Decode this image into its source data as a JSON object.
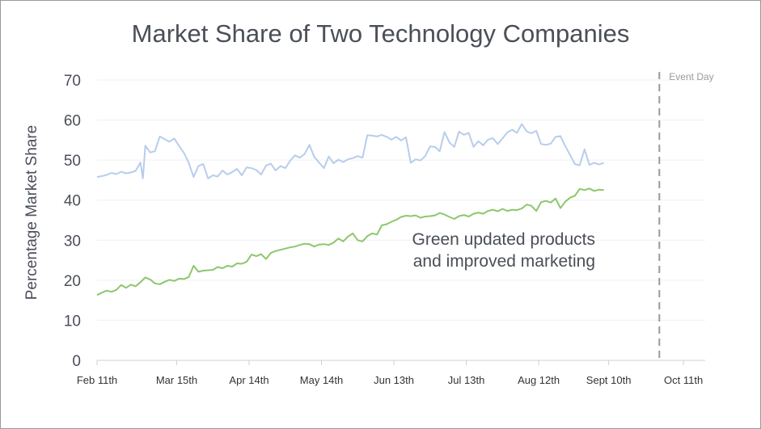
{
  "chart_data": {
    "type": "line",
    "title": "Market Share of Two Technology Companies",
    "xlabel": "",
    "ylabel": "Percentage Market Share",
    "ylim": [
      0,
      70
    ],
    "yticks": [
      0,
      10,
      20,
      30,
      40,
      50,
      60,
      70
    ],
    "xticks": [
      "Feb 11th",
      "Mar 15th",
      "Apr 14th",
      "May 14th",
      "Jun 13th",
      "Jul 13th",
      "Aug 12th",
      "Sept 10th",
      "Oct 11th"
    ],
    "grid": true,
    "event_marker": {
      "label": "Event Day",
      "x": "2024-10-01"
    },
    "annotation": [
      "Green updated products",
      "and improved marketing"
    ],
    "series": [
      {
        "color": "#b7cdec",
        "points": [
          [
            "2024-02-11",
            45.8
          ],
          [
            "2024-02-13",
            46.0
          ],
          [
            "2024-02-15",
            46.3
          ],
          [
            "2024-02-17",
            46.8
          ],
          [
            "2024-02-19",
            46.5
          ],
          [
            "2024-02-21",
            47.1
          ],
          [
            "2024-02-23",
            46.7
          ],
          [
            "2024-02-25",
            46.9
          ],
          [
            "2024-02-27",
            47.3
          ],
          [
            "2024-02-29",
            49.4
          ],
          [
            "2024-03-01",
            45.4
          ],
          [
            "2024-03-02",
            53.6
          ],
          [
            "2024-03-04",
            51.9
          ],
          [
            "2024-03-06",
            52.2
          ],
          [
            "2024-03-08",
            55.9
          ],
          [
            "2024-03-10",
            55.2
          ],
          [
            "2024-03-12",
            54.6
          ],
          [
            "2024-03-14",
            55.4
          ],
          [
            "2024-03-16",
            53.5
          ],
          [
            "2024-03-18",
            51.8
          ],
          [
            "2024-03-20",
            49.3
          ],
          [
            "2024-03-22",
            45.8
          ],
          [
            "2024-03-24",
            48.5
          ],
          [
            "2024-03-26",
            49.0
          ],
          [
            "2024-03-28",
            45.4
          ],
          [
            "2024-03-30",
            46.2
          ],
          [
            "2024-04-01",
            45.9
          ],
          [
            "2024-04-03",
            47.4
          ],
          [
            "2024-04-05",
            46.4
          ],
          [
            "2024-04-07",
            47.0
          ],
          [
            "2024-04-09",
            47.8
          ],
          [
            "2024-04-11",
            46.2
          ],
          [
            "2024-04-13",
            48.2
          ],
          [
            "2024-04-15",
            48.0
          ],
          [
            "2024-04-17",
            47.5
          ],
          [
            "2024-04-19",
            46.4
          ],
          [
            "2024-04-21",
            48.6
          ],
          [
            "2024-04-23",
            49.1
          ],
          [
            "2024-04-25",
            47.4
          ],
          [
            "2024-04-27",
            48.5
          ],
          [
            "2024-04-29",
            48.0
          ],
          [
            "2024-05-01",
            49.8
          ],
          [
            "2024-05-03",
            51.2
          ],
          [
            "2024-05-05",
            50.6
          ],
          [
            "2024-05-07",
            51.5
          ],
          [
            "2024-05-09",
            53.8
          ],
          [
            "2024-05-11",
            50.8
          ],
          [
            "2024-05-13",
            49.4
          ],
          [
            "2024-05-15",
            48.0
          ],
          [
            "2024-05-17",
            50.9
          ],
          [
            "2024-05-19",
            49.2
          ],
          [
            "2024-05-21",
            50.1
          ],
          [
            "2024-05-23",
            49.5
          ],
          [
            "2024-05-25",
            50.2
          ],
          [
            "2024-05-27",
            50.5
          ],
          [
            "2024-05-29",
            51.0
          ],
          [
            "2024-05-31",
            50.6
          ],
          [
            "2024-06-02",
            56.2
          ],
          [
            "2024-06-04",
            56.1
          ],
          [
            "2024-06-06",
            55.9
          ],
          [
            "2024-06-08",
            56.3
          ],
          [
            "2024-06-10",
            55.8
          ],
          [
            "2024-06-12",
            55.1
          ],
          [
            "2024-06-14",
            55.8
          ],
          [
            "2024-06-16",
            54.9
          ],
          [
            "2024-06-18",
            55.7
          ],
          [
            "2024-06-20",
            49.3
          ],
          [
            "2024-06-22",
            50.2
          ],
          [
            "2024-06-24",
            49.9
          ],
          [
            "2024-06-26",
            51.0
          ],
          [
            "2024-06-28",
            53.4
          ],
          [
            "2024-06-30",
            53.3
          ],
          [
            "2024-07-02",
            52.2
          ],
          [
            "2024-07-04",
            57.0
          ],
          [
            "2024-07-06",
            54.4
          ],
          [
            "2024-07-08",
            53.3
          ],
          [
            "2024-07-10",
            57.1
          ],
          [
            "2024-07-12",
            56.3
          ],
          [
            "2024-07-14",
            56.8
          ],
          [
            "2024-07-16",
            53.3
          ],
          [
            "2024-07-18",
            54.7
          ],
          [
            "2024-07-20",
            53.7
          ],
          [
            "2024-07-22",
            55.1
          ],
          [
            "2024-07-24",
            55.5
          ],
          [
            "2024-07-26",
            54.0
          ],
          [
            "2024-07-28",
            55.4
          ],
          [
            "2024-07-30",
            56.9
          ],
          [
            "2024-08-01",
            57.6
          ],
          [
            "2024-08-03",
            56.8
          ],
          [
            "2024-08-05",
            59.0
          ],
          [
            "2024-08-07",
            57.2
          ],
          [
            "2024-08-09",
            56.7
          ],
          [
            "2024-08-11",
            57.3
          ],
          [
            "2024-08-13",
            54.0
          ],
          [
            "2024-08-15",
            53.8
          ],
          [
            "2024-08-17",
            54.1
          ],
          [
            "2024-08-19",
            55.8
          ],
          [
            "2024-08-21",
            56.0
          ],
          [
            "2024-08-23",
            53.5
          ],
          [
            "2024-08-25",
            51.3
          ],
          [
            "2024-08-27",
            49.0
          ],
          [
            "2024-08-29",
            48.7
          ],
          [
            "2024-08-31",
            52.7
          ],
          [
            "2024-09-02",
            48.8
          ],
          [
            "2024-09-04",
            49.3
          ],
          [
            "2024-09-06",
            48.9
          ],
          [
            "2024-09-08",
            49.3
          ]
        ]
      },
      {
        "color": "#8dc76d",
        "points": [
          [
            "2024-02-11",
            16.3
          ],
          [
            "2024-02-13",
            16.9
          ],
          [
            "2024-02-15",
            17.4
          ],
          [
            "2024-02-17",
            17.1
          ],
          [
            "2024-02-19",
            17.6
          ],
          [
            "2024-02-21",
            18.8
          ],
          [
            "2024-02-23",
            18.1
          ],
          [
            "2024-02-25",
            18.9
          ],
          [
            "2024-02-27",
            18.5
          ],
          [
            "2024-02-29",
            19.5
          ],
          [
            "2024-03-02",
            20.7
          ],
          [
            "2024-03-04",
            20.2
          ],
          [
            "2024-03-06",
            19.2
          ],
          [
            "2024-03-08",
            19.0
          ],
          [
            "2024-03-10",
            19.6
          ],
          [
            "2024-03-12",
            20.1
          ],
          [
            "2024-03-14",
            19.8
          ],
          [
            "2024-03-16",
            20.4
          ],
          [
            "2024-03-18",
            20.3
          ],
          [
            "2024-03-20",
            20.8
          ],
          [
            "2024-03-22",
            23.6
          ],
          [
            "2024-03-24",
            22.1
          ],
          [
            "2024-03-26",
            22.4
          ],
          [
            "2024-03-28",
            22.5
          ],
          [
            "2024-03-30",
            22.6
          ],
          [
            "2024-04-01",
            23.3
          ],
          [
            "2024-04-03",
            23.0
          ],
          [
            "2024-04-05",
            23.6
          ],
          [
            "2024-04-07",
            23.4
          ],
          [
            "2024-04-09",
            24.2
          ],
          [
            "2024-04-11",
            24.1
          ],
          [
            "2024-04-13",
            24.6
          ],
          [
            "2024-04-15",
            26.4
          ],
          [
            "2024-04-17",
            26.0
          ],
          [
            "2024-04-19",
            26.5
          ],
          [
            "2024-04-21",
            25.3
          ],
          [
            "2024-04-23",
            26.8
          ],
          [
            "2024-04-25",
            27.3
          ],
          [
            "2024-04-27",
            27.6
          ],
          [
            "2024-04-29",
            27.9
          ],
          [
            "2024-05-01",
            28.2
          ],
          [
            "2024-05-03",
            28.4
          ],
          [
            "2024-05-05",
            28.8
          ],
          [
            "2024-05-07",
            29.1
          ],
          [
            "2024-05-09",
            29.0
          ],
          [
            "2024-05-11",
            28.4
          ],
          [
            "2024-05-13",
            28.9
          ],
          [
            "2024-05-15",
            29.0
          ],
          [
            "2024-05-17",
            28.8
          ],
          [
            "2024-05-19",
            29.4
          ],
          [
            "2024-05-21",
            30.4
          ],
          [
            "2024-05-23",
            29.7
          ],
          [
            "2024-05-25",
            30.9
          ],
          [
            "2024-05-27",
            31.7
          ],
          [
            "2024-05-29",
            30.0
          ],
          [
            "2024-05-31",
            29.7
          ],
          [
            "2024-06-02",
            31.0
          ],
          [
            "2024-06-04",
            31.7
          ],
          [
            "2024-06-06",
            31.4
          ],
          [
            "2024-06-08",
            33.7
          ],
          [
            "2024-06-10",
            34.0
          ],
          [
            "2024-06-12",
            34.6
          ],
          [
            "2024-06-14",
            35.1
          ],
          [
            "2024-06-16",
            35.8
          ],
          [
            "2024-06-18",
            36.1
          ],
          [
            "2024-06-20",
            36.0
          ],
          [
            "2024-06-22",
            36.2
          ],
          [
            "2024-06-24",
            35.6
          ],
          [
            "2024-06-26",
            35.9
          ],
          [
            "2024-06-28",
            36.0
          ],
          [
            "2024-06-30",
            36.2
          ],
          [
            "2024-07-02",
            36.8
          ],
          [
            "2024-07-04",
            36.4
          ],
          [
            "2024-07-06",
            35.8
          ],
          [
            "2024-07-08",
            35.3
          ],
          [
            "2024-07-10",
            36.0
          ],
          [
            "2024-07-12",
            36.3
          ],
          [
            "2024-07-14",
            35.9
          ],
          [
            "2024-07-16",
            36.6
          ],
          [
            "2024-07-18",
            36.9
          ],
          [
            "2024-07-20",
            36.6
          ],
          [
            "2024-07-22",
            37.3
          ],
          [
            "2024-07-24",
            37.6
          ],
          [
            "2024-07-26",
            37.2
          ],
          [
            "2024-07-28",
            37.8
          ],
          [
            "2024-07-30",
            37.3
          ],
          [
            "2024-08-01",
            37.6
          ],
          [
            "2024-08-03",
            37.5
          ],
          [
            "2024-08-05",
            37.9
          ],
          [
            "2024-08-07",
            38.9
          ],
          [
            "2024-08-09",
            38.6
          ],
          [
            "2024-08-11",
            37.3
          ],
          [
            "2024-08-13",
            39.5
          ],
          [
            "2024-08-15",
            39.8
          ],
          [
            "2024-08-17",
            39.4
          ],
          [
            "2024-08-19",
            40.4
          ],
          [
            "2024-08-21",
            38.0
          ],
          [
            "2024-08-23",
            39.6
          ],
          [
            "2024-08-25",
            40.6
          ],
          [
            "2024-08-27",
            41.1
          ],
          [
            "2024-08-29",
            42.8
          ],
          [
            "2024-08-31",
            42.5
          ],
          [
            "2024-09-02",
            42.9
          ],
          [
            "2024-09-04",
            42.3
          ],
          [
            "2024-09-06",
            42.6
          ],
          [
            "2024-09-08",
            42.5
          ]
        ]
      }
    ]
  }
}
